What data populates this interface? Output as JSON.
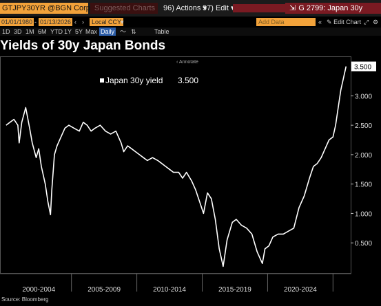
{
  "toolbar": {
    "ticker": "GTJPY30YR @BGN Corp",
    "suggested": "Suggested Charts",
    "actions": "96) Actions ▾",
    "edit": "97) Edit ▾",
    "function": "G 2799: Japan 30y"
  },
  "toolbar2": {
    "start_date": "01/01/1980",
    "end_date": "01/13/2026",
    "currency": "Local CCY",
    "add_data": "Add Data",
    "edit_chart": "Edit Chart"
  },
  "range_buttons": [
    "1D",
    "3D",
    "1M",
    "6M",
    "YTD",
    "1Y",
    "5Y",
    "Max"
  ],
  "frequency": "Daily",
  "table_label": "Table",
  "page_title": "Yields of 30y Japan Bonds",
  "annotate_label": "Annotate",
  "source": "Source: Bloomberg",
  "colors": {
    "orange": "#f2a23a",
    "line": "#ffffff",
    "last_value_bg": "#ffffff",
    "background": "#000000"
  },
  "chart_data": {
    "type": "line",
    "series": [
      {
        "name": "Japan 30y yield",
        "last_value_label": "3.500",
        "x": [
          2000.0,
          2000.3,
          2000.6,
          2000.9,
          2001.0,
          2001.2,
          2001.5,
          2001.8,
          2002.0,
          2002.3,
          2002.5,
          2002.7,
          2003.0,
          2003.2,
          2003.4,
          2003.5,
          2003.7,
          2003.9,
          2004.2,
          2004.5,
          2004.8,
          2005.2,
          2005.6,
          2005.9,
          2006.2,
          2006.5,
          2006.8,
          2007.2,
          2007.6,
          2008.0,
          2008.4,
          2008.8,
          2009.0,
          2009.3,
          2009.6,
          2009.9,
          2010.2,
          2010.5,
          2010.8,
          2011.2,
          2011.6,
          2011.9,
          2012.2,
          2012.5,
          2012.8,
          2013.2,
          2013.5,
          2013.8,
          2014.2,
          2014.5,
          2014.8,
          2015.1,
          2015.4,
          2015.7,
          2016.0,
          2016.3,
          2016.6,
          2016.9,
          2017.3,
          2017.6,
          2018.0,
          2018.4,
          2018.8,
          2019.2,
          2019.6,
          2019.8,
          2020.1,
          2020.4,
          2020.8,
          2021.2,
          2021.6,
          2022.0,
          2022.4,
          2022.8,
          2023.2,
          2023.5,
          2023.8,
          2024.1,
          2024.4,
          2024.7,
          2025.0,
          2025.2,
          2025.4,
          2025.6,
          2025.8,
          2026.0
        ],
        "values": [
          2.5,
          2.55,
          2.6,
          2.5,
          2.2,
          2.55,
          2.8,
          2.45,
          2.2,
          1.95,
          2.1,
          1.8,
          1.5,
          1.2,
          0.98,
          1.4,
          2.0,
          2.15,
          2.3,
          2.45,
          2.5,
          2.45,
          2.4,
          2.55,
          2.5,
          2.4,
          2.45,
          2.5,
          2.4,
          2.35,
          2.4,
          2.2,
          2.05,
          2.15,
          2.1,
          2.05,
          2.0,
          1.95,
          1.9,
          1.95,
          1.9,
          1.85,
          1.8,
          1.75,
          1.7,
          1.7,
          1.6,
          1.7,
          1.55,
          1.4,
          1.2,
          1.0,
          1.35,
          1.25,
          0.9,
          0.4,
          0.1,
          0.55,
          0.85,
          0.9,
          0.8,
          0.75,
          0.65,
          0.35,
          0.15,
          0.4,
          0.45,
          0.6,
          0.65,
          0.65,
          0.7,
          0.75,
          1.1,
          1.3,
          1.6,
          1.8,
          1.85,
          1.95,
          2.1,
          2.25,
          2.3,
          2.5,
          2.8,
          3.1,
          3.3,
          3.5
        ]
      }
    ],
    "x_tick_labels": [
      "2000-2004",
      "2005-2009",
      "2010-2014",
      "2015-2019",
      "2020-2024"
    ],
    "x_tick_ranges": [
      [
        2000,
        2005
      ],
      [
        2005,
        2010
      ],
      [
        2010,
        2015
      ],
      [
        2015,
        2020
      ],
      [
        2020,
        2025
      ]
    ],
    "y_tick_labels": [
      "3.000",
      "2.500",
      "2.000",
      "1.500",
      "1.000",
      "0.500"
    ],
    "y_tick_values": [
      3.0,
      2.5,
      2.0,
      1.5,
      1.0,
      0.5
    ],
    "xlim": [
      1999.8,
      2026.3
    ],
    "ylim": [
      0.0,
      3.6
    ],
    "grid": false,
    "legend_position": "top-left"
  }
}
